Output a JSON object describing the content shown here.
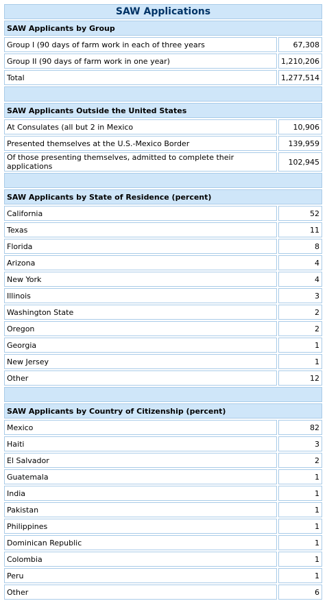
{
  "title": "SAW Applications",
  "sections": [
    {
      "heading": "SAW Applicants by Group",
      "rows": [
        {
          "label": "Group I (90 days of farm work in each of three years",
          "value": "67,308"
        },
        {
          "label": "Group II (90 days of farm work in one year)",
          "value": "1,210,206"
        },
        {
          "label": "Total",
          "value": "1,277,514"
        }
      ]
    },
    {
      "heading": "SAW Applicants Outside the United States",
      "rows": [
        {
          "label": "At Consulates (all but 2 in Mexico",
          "value": "10,906"
        },
        {
          "label": "Presented themselves at the U.S.-Mexico Border",
          "value": "139,959"
        },
        {
          "label": "Of those presenting themselves, admitted to complete their applications",
          "value": "102,945"
        }
      ]
    },
    {
      "heading": "SAW Applicants by State of Residence (percent)",
      "rows": [
        {
          "label": "California",
          "value": "52"
        },
        {
          "label": "Texas",
          "value": "11"
        },
        {
          "label": "Florida",
          "value": "8"
        },
        {
          "label": "Arizona",
          "value": "4"
        },
        {
          "label": "New York",
          "value": "4"
        },
        {
          "label": "Illinois",
          "value": "3"
        },
        {
          "label": "Washington State",
          "value": "2"
        },
        {
          "label": "Oregon",
          "value": "2"
        },
        {
          "label": "Georgia",
          "value": "1"
        },
        {
          "label": "New Jersey",
          "value": "1"
        },
        {
          "label": "Other",
          "value": "12"
        }
      ]
    },
    {
      "heading": "SAW Applicants by Country of Citizenship (percent)",
      "rows": [
        {
          "label": "Mexico",
          "value": "82"
        },
        {
          "label": "Haiti",
          "value": "3"
        },
        {
          "label": "El Salvador",
          "value": "2"
        },
        {
          "label": "Guatemala",
          "value": "1"
        },
        {
          "label": "India",
          "value": "1"
        },
        {
          "label": "Pakistan",
          "value": "1"
        },
        {
          "label": "Philippines",
          "value": "1"
        },
        {
          "label": "Dominican Republic",
          "value": "1"
        },
        {
          "label": "Colombia",
          "value": "1"
        },
        {
          "label": "Peru",
          "value": "1"
        },
        {
          "label": "Other",
          "value": "6"
        }
      ]
    }
  ]
}
